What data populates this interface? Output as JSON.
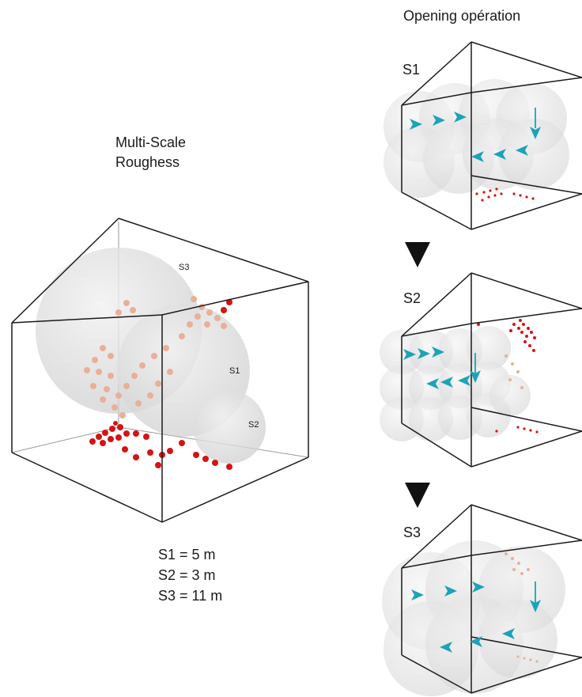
{
  "left": {
    "title_line1": "Multi-Scale",
    "title_line2": "Roughess",
    "sphere_labels": {
      "s3": "S3",
      "s1": "S1",
      "s2": "S2"
    },
    "legend": [
      "S1 = 5 m",
      "S2 = 3 m",
      "S3 = 11 m"
    ]
  },
  "right": {
    "title": "Opening opération",
    "panels": [
      {
        "label": "S1"
      },
      {
        "label": "S2"
      },
      {
        "label": "S3"
      }
    ]
  },
  "colors": {
    "line": "#1a1a1a",
    "sphere": "#d9d9d9",
    "arrow": "#1ba3b8",
    "point_red": "#d41414",
    "point_faint": "#e8a88c"
  },
  "icons": [
    "down-triangle-icon",
    "arrow-right-icon",
    "arrow-left-icon",
    "arrow-down-icon"
  ]
}
